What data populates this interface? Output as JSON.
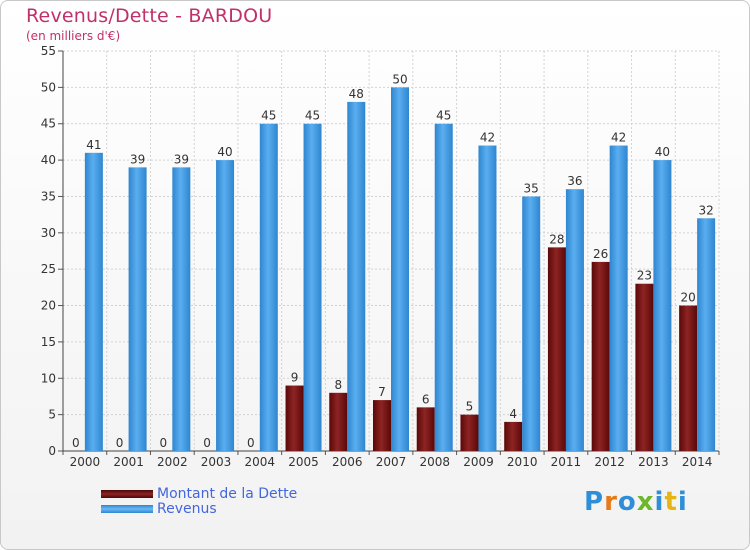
{
  "header": {
    "title": "Revenus/Dette - BARDOU",
    "subtitle": "(en milliers d'€)"
  },
  "legend": {
    "items": [
      {
        "label": "Montant de la Dette",
        "color": "#7a1010"
      },
      {
        "label": "Revenus",
        "color": "#4a9de0"
      }
    ]
  },
  "logo": {
    "text": "Proxiti",
    "colors": [
      "#2e8fd8",
      "#e57a16",
      "#2e8fd8",
      "#6bb82a",
      "#2e8fd8",
      "#e5b516",
      "#2e8fd8"
    ]
  },
  "chart_data": {
    "type": "bar",
    "title": "Revenus/Dette - BARDOU",
    "subtitle": "(en milliers d'€)",
    "categories": [
      "2000",
      "2001",
      "2002",
      "2003",
      "2004",
      "2005",
      "2006",
      "2007",
      "2008",
      "2009",
      "2010",
      "2011",
      "2012",
      "2013",
      "2014"
    ],
    "series": [
      {
        "name": "Montant de la Dette",
        "color": "#7a1010",
        "values": [
          0,
          0,
          0,
          0,
          0,
          9,
          8,
          7,
          6,
          5,
          4,
          28,
          26,
          23,
          20
        ]
      },
      {
        "name": "Revenus",
        "color": "#4a9de0",
        "values": [
          41,
          39,
          39,
          40,
          45,
          45,
          48,
          50,
          45,
          42,
          35,
          36,
          42,
          40,
          32
        ]
      }
    ],
    "ylim": [
      0,
      55
    ],
    "yticks": [
      0,
      5,
      10,
      15,
      20,
      25,
      30,
      35,
      40,
      45,
      50,
      55
    ],
    "grid": true,
    "legend_position": "bottom-left"
  }
}
